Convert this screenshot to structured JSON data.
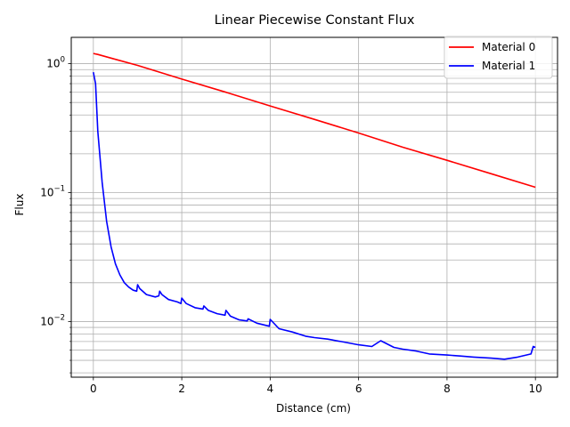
{
  "chart_data": {
    "type": "line",
    "title": "Linear Piecewise Constant Flux",
    "xlabel": "Distance (cm)",
    "ylabel": "Flux",
    "yscale": "log",
    "xlim": [
      -0.5,
      10.5
    ],
    "ylim": [
      0.0037,
      1.6
    ],
    "x_ticks": [
      0,
      2,
      4,
      6,
      8,
      10
    ],
    "x_tick_labels": [
      "0",
      "2",
      "4",
      "6",
      "8",
      "10"
    ],
    "y_major_ticks": [
      0.01,
      0.1,
      1
    ],
    "y_minor_ticks": [
      0.004,
      0.005,
      0.006,
      0.007,
      0.008,
      0.009,
      0.02,
      0.03,
      0.04,
      0.05,
      0.06,
      0.07,
      0.08,
      0.09,
      0.2,
      0.3,
      0.4,
      0.5,
      0.6,
      0.7,
      0.8,
      0.9
    ],
    "grid": "major and minor",
    "legend_position": "top-right",
    "series": [
      {
        "name": "Material 0",
        "color": "#ff0000",
        "x": [
          0,
          0.1,
          0.5,
          1,
          2,
          3,
          4,
          5,
          6,
          7,
          8,
          9,
          10
        ],
        "y": [
          1.2,
          1.18,
          1.08,
          0.97,
          0.76,
          0.6,
          0.47,
          0.37,
          0.29,
          0.225,
          0.178,
          0.14,
          0.11
        ]
      },
      {
        "name": "Material 1",
        "color": "#0000ff",
        "x": [
          0,
          0.05,
          0.1,
          0.2,
          0.3,
          0.4,
          0.5,
          0.6,
          0.7,
          0.8,
          0.9,
          0.98,
          1.0,
          1.05,
          1.2,
          1.4,
          1.48,
          1.5,
          1.55,
          1.7,
          1.9,
          1.98,
          2.0,
          2.1,
          2.3,
          2.48,
          2.5,
          2.6,
          2.8,
          2.98,
          3.0,
          3.1,
          3.3,
          3.48,
          3.5,
          3.7,
          3.98,
          4.0,
          4.2,
          4.5,
          4.8,
          5.0,
          5.3,
          5.6,
          6.0,
          6.3,
          6.5,
          6.8,
          7.0,
          7.3,
          7.6,
          8.0,
          8.3,
          8.6,
          9.0,
          9.3,
          9.6,
          9.9,
          9.95,
          10.0
        ],
        "y": [
          0.86,
          0.7,
          0.3,
          0.12,
          0.06,
          0.038,
          0.028,
          0.023,
          0.02,
          0.0185,
          0.0175,
          0.0172,
          0.0193,
          0.018,
          0.0162,
          0.0155,
          0.0158,
          0.0172,
          0.0162,
          0.0148,
          0.0142,
          0.0138,
          0.0152,
          0.0138,
          0.0128,
          0.0125,
          0.0132,
          0.0122,
          0.0115,
          0.0112,
          0.0122,
          0.011,
          0.0103,
          0.0101,
          0.0105,
          0.0097,
          0.0092,
          0.0104,
          0.0088,
          0.0083,
          0.0077,
          0.0075,
          0.0073,
          0.007,
          0.0066,
          0.0064,
          0.0071,
          0.0063,
          0.0061,
          0.0059,
          0.0056,
          0.0055,
          0.0054,
          0.0053,
          0.0052,
          0.0051,
          0.0053,
          0.0056,
          0.0064,
          0.0063
        ]
      }
    ]
  }
}
